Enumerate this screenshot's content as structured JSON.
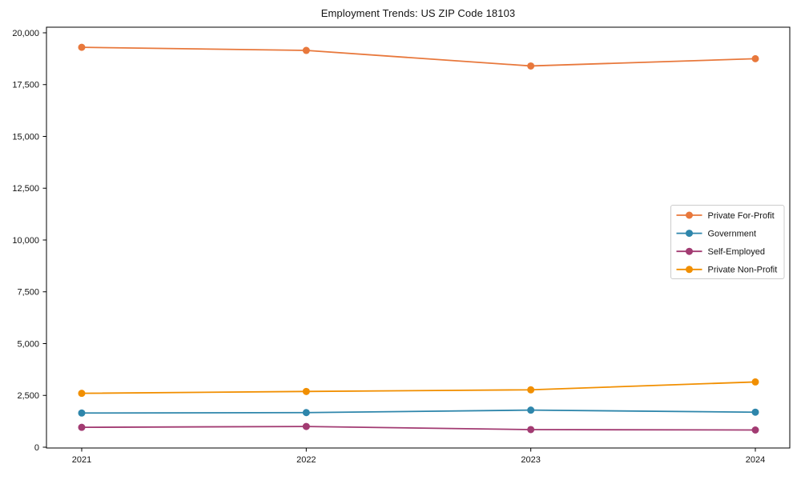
{
  "title": "Employment Trends: US ZIP Code 18103",
  "colors": {
    "background": "#ffffff",
    "axis": "#000000",
    "tick_label": "#141414",
    "legend_border": "#cccccc",
    "legend_background": "#ffffff",
    "series_private_for_profit": "#E8783C",
    "series_government": "#2E86AB",
    "series_self_employed": "#A23B72",
    "series_private_non_profit": "#F18F01"
  },
  "chart_data": {
    "type": "line",
    "title": "Employment Trends: US ZIP Code 18103",
    "xlabel": "",
    "ylabel": "",
    "x": [
      2021,
      2022,
      2023,
      2024
    ],
    "xtick_labels": [
      "2021",
      "2022",
      "2023",
      "2024"
    ],
    "ylim": [
      0,
      20000
    ],
    "ytick_step": 2500,
    "ytick_values": [
      0,
      2500,
      5000,
      7500,
      10000,
      12500,
      15000,
      17500,
      20000
    ],
    "ytick_labels": [
      "0",
      "2,500",
      "5,000",
      "7,500",
      "10,000",
      "12,500",
      "15,000",
      "17,500",
      "20,000"
    ],
    "grid": false,
    "marker": "circle",
    "legend_position": "center right",
    "series": [
      {
        "name": "Private For-Profit",
        "color": "#E8783C",
        "values": [
          19300,
          19150,
          18400,
          18750
        ]
      },
      {
        "name": "Government",
        "color": "#2E86AB",
        "values": [
          1650,
          1670,
          1790,
          1690
        ]
      },
      {
        "name": "Self-Employed",
        "color": "#A23B72",
        "values": [
          960,
          1000,
          850,
          830
        ]
      },
      {
        "name": "Private Non-Profit",
        "color": "#F18F01",
        "values": [
          2600,
          2690,
          2770,
          3150
        ]
      }
    ]
  }
}
